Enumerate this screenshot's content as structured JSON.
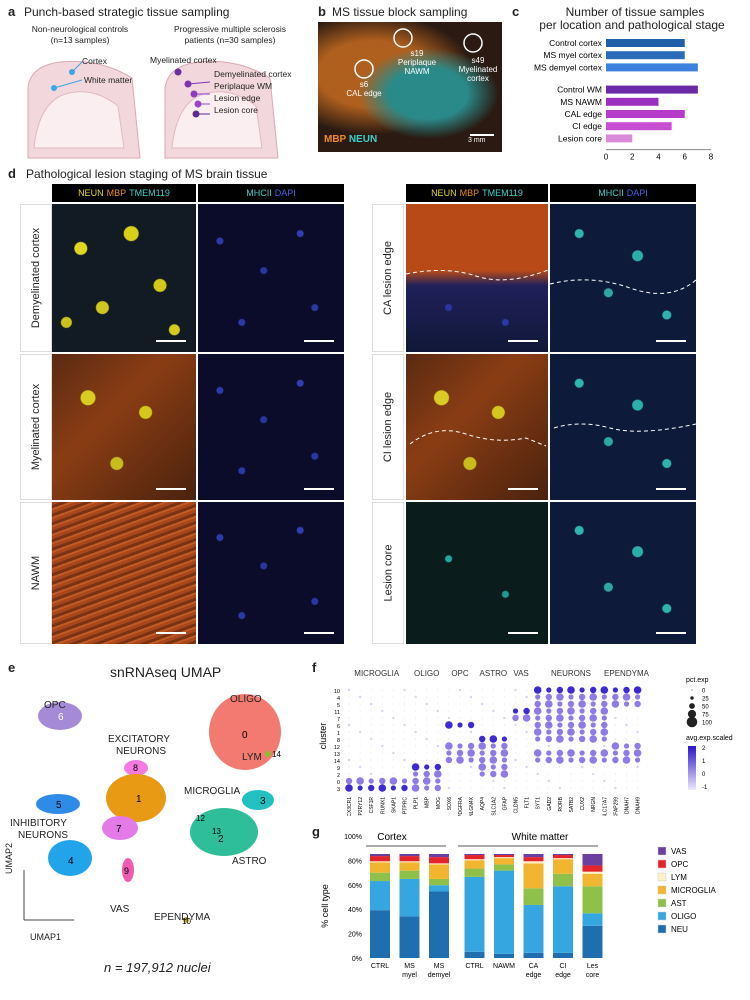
{
  "panel_a": {
    "letter": "a",
    "title": "Punch-based strategic tissue sampling",
    "left_group": "Non-neurological controls",
    "left_n": "(n=13 samples)",
    "right_group": "Progressive multiple sclerosis",
    "right_n": "patients (n=30 samples)",
    "left_labels": [
      "Cortex",
      "White matter"
    ],
    "right_labels": [
      "Myelinated cortex",
      "Demyelinated cortex",
      "Periplaque WM",
      "Lesion edge",
      "Lesion core"
    ]
  },
  "panel_b": {
    "letter": "b",
    "title": "MS tissue block sampling",
    "sites": [
      {
        "id": "s19",
        "label": "Periplaque NAWM"
      },
      {
        "id": "s49",
        "label": "Myelinated cortex"
      },
      {
        "id": "s6",
        "label": "CAL edge"
      }
    ],
    "stain_mbp": "MBP",
    "stain_neun": "NEUN",
    "scale": "3 mm"
  },
  "panel_c": {
    "letter": "c",
    "title_line1": "Number of tissue samples",
    "title_line2": "per location and pathological stage",
    "chart_data": {
      "type": "bar",
      "orientation": "horizontal",
      "categories": [
        "Control cortex",
        "MS myel cortex",
        "MS demyel cortex",
        "Control WM",
        "MS NAWM",
        "CAL edge",
        "CI edge",
        "Lesion core"
      ],
      "values": [
        6,
        6,
        7,
        7,
        4,
        6,
        5,
        2
      ],
      "colors": [
        "#1f5fa8",
        "#2b6cb8",
        "#3b82e0",
        "#6a2aa8",
        "#9a2fc0",
        "#b43cc8",
        "#c64fd4",
        "#d98ad8"
      ],
      "xlim": [
        0,
        8
      ],
      "xticks": [
        0,
        2,
        4,
        6,
        8
      ]
    }
  },
  "panel_d": {
    "letter": "d",
    "title": "Pathological lesion staging of MS brain tissue",
    "head_left": [
      {
        "t": "NEUN",
        "c": "#e2d622"
      },
      {
        "t": "MBP",
        "c": "#e8892a"
      },
      {
        "t": "TMEM119",
        "c": "#3fd0c8"
      }
    ],
    "head_right": [
      {
        "t": "MHCII",
        "c": "#3fd0c8"
      },
      {
        "t": "DAPI",
        "c": "#4a5cf0"
      }
    ],
    "rows_left": [
      "Demyelinated cortex",
      "Myelinated cortex",
      "NAWM"
    ],
    "rows_right": [
      "CA lesion edge",
      "CI lesion edge",
      "Lesion core"
    ]
  },
  "panel_e": {
    "letter": "e",
    "title": "snRNAseq UMAP",
    "n_text": "n = 197,912 nuclei",
    "axis_x": "UMAP1",
    "axis_y": "UMAP2",
    "cluster_labels": {
      "oligo": "OLIGO",
      "opc": "OPC",
      "exc": "EXCITATORY",
      "exc2": "NEURONS",
      "inh": "INHIBITORY",
      "inh2": "NEURONS",
      "lym": "LYM",
      "micro": "MICROGLIA",
      "astro": "ASTRO",
      "vas": "VAS",
      "epen": "EPENDYMA"
    },
    "cluster_ids": [
      "0",
      "1",
      "2",
      "3",
      "4",
      "5",
      "6",
      "7",
      "8",
      "9",
      "10",
      "11",
      "12",
      "13",
      "14"
    ]
  },
  "panel_f": {
    "letter": "f",
    "groups": [
      "MICROGLIA",
      "OLIGO",
      "OPC",
      "ASTRO",
      "VAS",
      "NEURONS",
      "EPENDYMA"
    ],
    "genes": [
      "CX3CR1",
      "P2RY12",
      "CSF1R",
      "RUNX1",
      "SKAP1",
      "PTPRC",
      "PLP1",
      "MBP",
      "MOG",
      "SOX6",
      "PDGFRA",
      "NLGN4X",
      "AQP4",
      "SLC1A2",
      "GFAP",
      "CLDN5",
      "FLT1",
      "SYT1",
      "GAD2",
      "RORB",
      "SATB2",
      "CUX2",
      "NRGN",
      "SLC17A7",
      "CFAP299",
      "DNAH7",
      "DNAH9"
    ],
    "clusters": [
      "10",
      "4",
      "5",
      "11",
      "7",
      "6",
      "1",
      "8",
      "12",
      "13",
      "14",
      "9",
      "2",
      "0",
      "3"
    ],
    "ylabel": "cluster",
    "legend_pct_title": "pct.exp",
    "legend_pct": [
      "0",
      "25",
      "50",
      "75",
      "100"
    ],
    "legend_avg_title": "avg.exp.scaled",
    "legend_avg": [
      "2",
      "1",
      "0",
      "-1"
    ]
  },
  "panel_g": {
    "letter": "g",
    "group_cortex": "Cortex",
    "group_wm": "White matter",
    "ylabel": "% cell type",
    "chart_data": {
      "type": "bar",
      "stacked": true,
      "categories": [
        "CTRL",
        "MS myel",
        "MS demyel",
        "CTRL",
        "NAWM",
        "CA edge",
        "CI edge",
        "Les core"
      ],
      "yticks": [
        "0%",
        "20%",
        "40%",
        "60%",
        "80%",
        "100%"
      ],
      "ylim": [
        0,
        100
      ],
      "series": [
        {
          "name": "NEU",
          "color": "#1f6fb0",
          "values": [
            46,
            40,
            64,
            6,
            4,
            5,
            5,
            31
          ]
        },
        {
          "name": "OLIGO",
          "color": "#35a6e0",
          "values": [
            28,
            36,
            6,
            72,
            80,
            46,
            64,
            12
          ]
        },
        {
          "name": "AST",
          "color": "#8fc04a",
          "values": [
            8,
            8,
            6,
            8,
            6,
            16,
            12,
            26
          ]
        },
        {
          "name": "MICROGLIA",
          "color": "#f2b530",
          "values": [
            10,
            8,
            14,
            8,
            6,
            24,
            14,
            12
          ]
        },
        {
          "name": "LYM",
          "color": "#fff1c8",
          "values": [
            1,
            1,
            1,
            1,
            1,
            2,
            1,
            2
          ]
        },
        {
          "name": "OPC",
          "color": "#e3242b",
          "values": [
            5,
            5,
            6,
            4,
            2,
            4,
            3,
            6
          ]
        },
        {
          "name": "VAS",
          "color": "#6b3fa0",
          "values": [
            2,
            2,
            3,
            1,
            1,
            3,
            1,
            11
          ]
        }
      ]
    }
  }
}
